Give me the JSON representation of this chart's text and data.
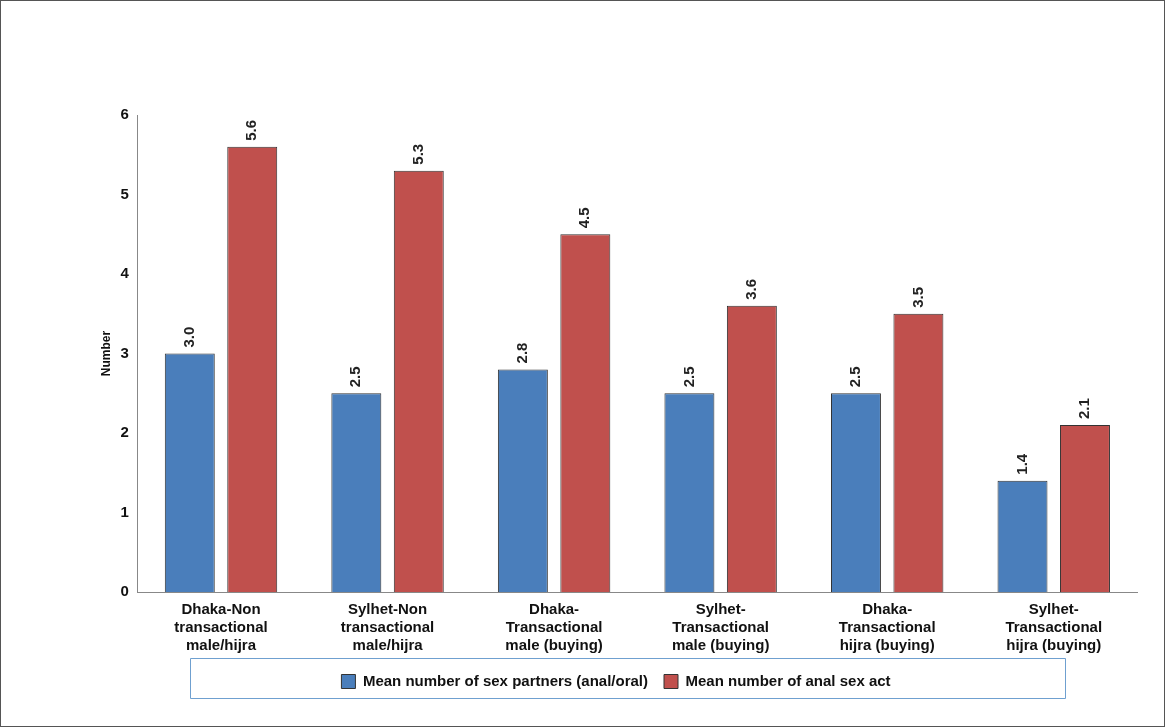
{
  "chart_data": {
    "type": "bar",
    "ylabel": "Number",
    "categories": [
      "Dhaka-Non\ntransactional\nmale/hijra",
      "Sylhet-Non\ntransactional\nmale/hijra",
      "Dhaka-\nTransactional\nmale (buying)",
      "Sylhet-\nTransactional\nmale (buying)",
      "Dhaka-\nTransactional\nhijra (buying)",
      "Sylhet-\nTransactional\nhijra (buying)"
    ],
    "series": [
      {
        "name": "Mean number of sex partners (anal/oral)",
        "color": "#4a7ebb",
        "values": [
          3.0,
          2.5,
          2.8,
          2.5,
          2.5,
          1.4
        ],
        "value_labels": [
          "3.0",
          "2.5",
          "2.8",
          "2.5",
          "2.5",
          "1.4"
        ]
      },
      {
        "name": "Mean number of anal sex act",
        "color": "#c0504d",
        "values": [
          5.6,
          5.3,
          4.5,
          3.6,
          3.5,
          2.1
        ],
        "value_labels": [
          "5.6",
          "5.3",
          "4.5",
          "3.6",
          "3.5",
          "2.1"
        ]
      }
    ],
    "ylim": [
      0,
      6
    ],
    "yticks": [
      0,
      1,
      2,
      3,
      4,
      5,
      6
    ],
    "grid": false,
    "legend": "bottom"
  }
}
